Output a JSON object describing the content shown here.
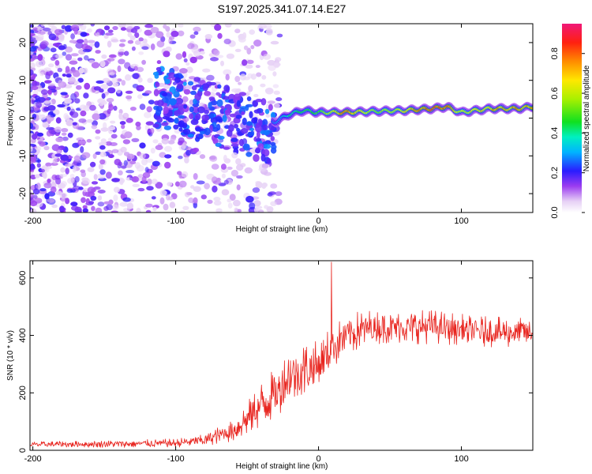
{
  "title": "S197.2025.341.07.14.E27",
  "chart_data": [
    {
      "type": "heatmap",
      "name": "spectrogram",
      "xlabel": "Height of straight line (km)",
      "ylabel": "Frequency (Hz)",
      "xlim": [
        -202,
        150
      ],
      "ylim": [
        -25,
        25
      ],
      "xticks": [
        -200,
        -100,
        0,
        100
      ],
      "xtick_labels": [
        "-200",
        "-100",
        "0",
        "100"
      ],
      "yticks": [
        -20,
        -10,
        0,
        10,
        20
      ],
      "ytick_labels": [
        "-20",
        "-10",
        "0",
        "10",
        "20"
      ],
      "description_series": {
        "ridge": {
          "x": [
            -30,
            -20,
            -10,
            0,
            20,
            40,
            60,
            80,
            90,
            100,
            120,
            140,
            150
          ],
          "freq": [
            -1,
            1,
            2,
            1.5,
            1.5,
            1.8,
            2,
            2.5,
            3,
            1.5,
            2.5,
            2.5,
            3
          ],
          "amplitude": [
            0.3,
            0.45,
            0.5,
            0.55,
            0.9,
            0.6,
            0.75,
            0.95,
            0.9,
            0.7,
            0.8,
            0.85,
            0.8
          ]
        },
        "noise_region_x": [
          -202,
          -30
        ]
      },
      "colorbar": {
        "label": "Normalized spectral amplitude",
        "min": 0.0,
        "max": 0.95,
        "ticks": [
          0.0,
          0.2,
          0.4,
          0.6,
          0.8
        ],
        "tick_labels": [
          "0.0",
          "0.2",
          "0.4",
          "0.6",
          "0.8"
        ]
      }
    },
    {
      "type": "line",
      "name": "snr",
      "xlabel": "Height of straight line (km)",
      "ylabel": "SNR (10 * v/v)",
      "xlim": [
        -202,
        150
      ],
      "ylim": [
        0,
        660
      ],
      "xticks": [
        -200,
        -100,
        0,
        100
      ],
      "xtick_labels": [
        "-200",
        "-100",
        "0",
        "100"
      ],
      "yticks": [
        0,
        200,
        400,
        600
      ],
      "ytick_labels": [
        "0",
        "200",
        "400",
        "600"
      ],
      "color": "#e8251f",
      "envelope": {
        "x": [
          -202,
          -150,
          -100,
          -80,
          -60,
          -50,
          -40,
          -30,
          -20,
          -10,
          0,
          10,
          20,
          30,
          40,
          60,
          80,
          100,
          120,
          150
        ],
        "mean": [
          20,
          22,
          25,
          35,
          70,
          110,
          160,
          200,
          260,
          280,
          290,
          360,
          400,
          420,
          430,
          430,
          430,
          420,
          410,
          410
        ],
        "amplitude": [
          10,
          12,
          15,
          20,
          40,
          60,
          80,
          90,
          100,
          100,
          90,
          80,
          70,
          70,
          60,
          60,
          60,
          55,
          55,
          50
        ]
      },
      "spike": {
        "x": 9,
        "y": 655
      }
    }
  ]
}
